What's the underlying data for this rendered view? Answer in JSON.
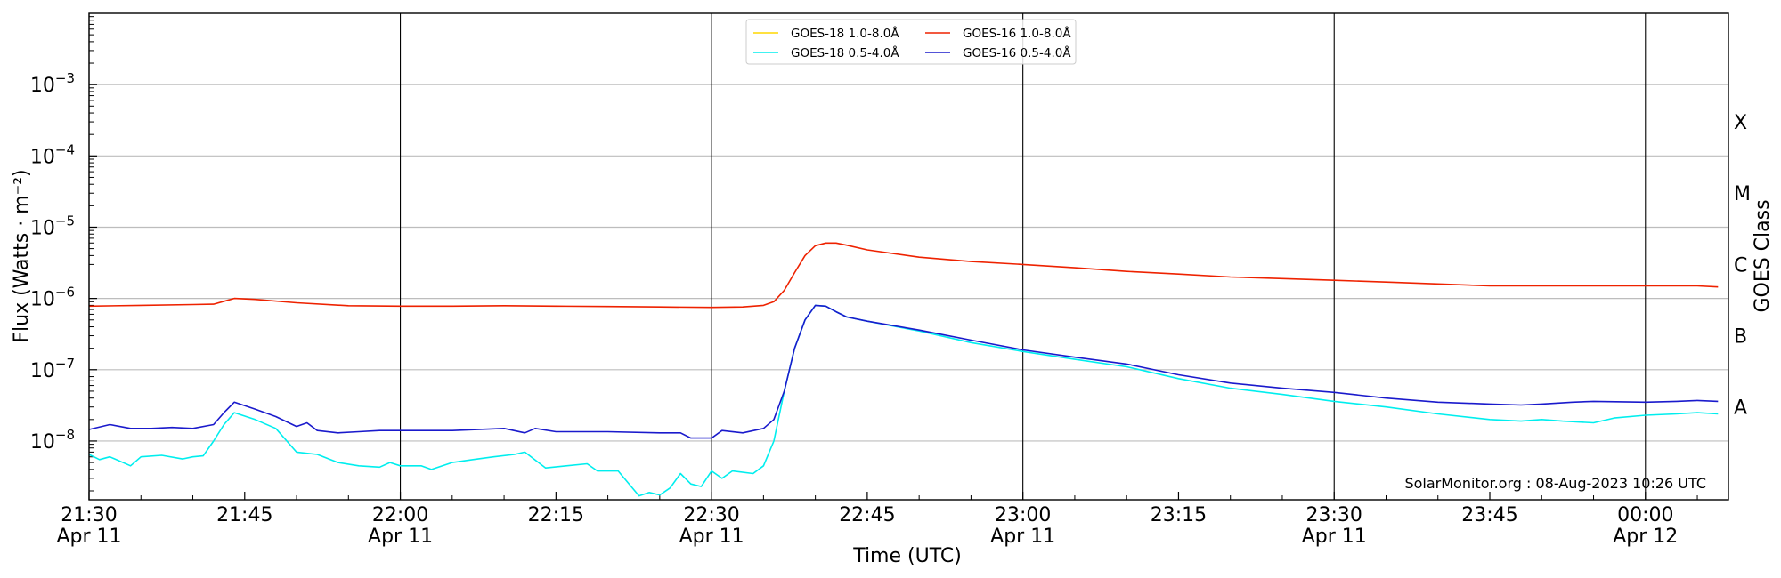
{
  "chart_data": {
    "type": "line",
    "title": "",
    "xlabel": "Time (UTC)",
    "ylabel": "Flux (Watts · m⁻²)",
    "y2label": "GOES Class",
    "yscale": "log",
    "ylim": [
      1.5e-09,
      0.01
    ],
    "xlim": [
      "21:30",
      "00:08"
    ],
    "x_ticks": [
      {
        "t": "21:30",
        "line1": "21:30",
        "line2": "Apr 11"
      },
      {
        "t": "21:45",
        "line1": "21:45",
        "line2": ""
      },
      {
        "t": "22:00",
        "line1": "22:00",
        "line2": "Apr 11"
      },
      {
        "t": "22:15",
        "line1": "22:15",
        "line2": ""
      },
      {
        "t": "22:30",
        "line1": "22:30",
        "line2": "Apr 11"
      },
      {
        "t": "22:45",
        "line1": "22:45",
        "line2": ""
      },
      {
        "t": "23:00",
        "line1": "23:00",
        "line2": "Apr 11"
      },
      {
        "t": "23:15",
        "line1": "23:15",
        "line2": ""
      },
      {
        "t": "23:30",
        "line1": "23:30",
        "line2": "Apr 11"
      },
      {
        "t": "23:45",
        "line1": "23:45",
        "line2": ""
      },
      {
        "t": "00:00",
        "line1": "00:00",
        "line2": "Apr 12"
      }
    ],
    "y_ticks": [
      {
        "value": 1e-08,
        "base": "10",
        "exp": "−8"
      },
      {
        "value": 1e-07,
        "base": "10",
        "exp": "−7"
      },
      {
        "value": 1e-06,
        "base": "10",
        "exp": "−6"
      },
      {
        "value": 1e-05,
        "base": "10",
        "exp": "−5"
      },
      {
        "value": 0.0001,
        "base": "10",
        "exp": "−4"
      },
      {
        "value": 0.001,
        "base": "10",
        "exp": "−3"
      }
    ],
    "goes_classes": [
      {
        "label": "A",
        "value": 3e-08
      },
      {
        "label": "B",
        "value": 3e-07
      },
      {
        "label": "C",
        "value": 3e-06
      },
      {
        "label": "M",
        "value": 3e-05
      },
      {
        "label": "X",
        "value": 0.0003
      }
    ],
    "grid": true,
    "legend_position": "top-center",
    "watermark": "SolarMonitor.org : 08-Aug-2023 10:26 UTC",
    "series": [
      {
        "name": "GOES-18 1.0-8.0Å",
        "color": "#ffd700",
        "points": []
      },
      {
        "name": "GOES-16 1.0-8.0Å",
        "color": "#ee2200",
        "points": [
          [
            "21:30",
            7.8e-07
          ],
          [
            "21:35",
            8e-07
          ],
          [
            "21:40",
            8.2e-07
          ],
          [
            "21:42",
            8.3e-07
          ],
          [
            "21:44",
            1e-06
          ],
          [
            "21:46",
            9.7e-07
          ],
          [
            "21:50",
            8.7e-07
          ],
          [
            "21:55",
            7.9e-07
          ],
          [
            "22:00",
            7.8e-07
          ],
          [
            "22:05",
            7.8e-07
          ],
          [
            "22:10",
            7.9e-07
          ],
          [
            "22:15",
            7.8e-07
          ],
          [
            "22:20",
            7.7e-07
          ],
          [
            "22:25",
            7.6e-07
          ],
          [
            "22:30",
            7.5e-07
          ],
          [
            "22:33",
            7.6e-07
          ],
          [
            "22:35",
            8e-07
          ],
          [
            "22:36",
            9e-07
          ],
          [
            "22:37",
            1.3e-06
          ],
          [
            "22:38",
            2.3e-06
          ],
          [
            "22:39",
            4e-06
          ],
          [
            "22:40",
            5.5e-06
          ],
          [
            "22:41",
            6e-06
          ],
          [
            "22:42",
            6e-06
          ],
          [
            "22:43",
            5.6e-06
          ],
          [
            "22:45",
            4.8e-06
          ],
          [
            "22:50",
            3.8e-06
          ],
          [
            "22:55",
            3.3e-06
          ],
          [
            "23:00",
            3e-06
          ],
          [
            "23:05",
            2.7e-06
          ],
          [
            "23:10",
            2.4e-06
          ],
          [
            "23:15",
            2.2e-06
          ],
          [
            "23:20",
            2e-06
          ],
          [
            "23:25",
            1.9e-06
          ],
          [
            "23:30",
            1.8e-06
          ],
          [
            "23:35",
            1.7e-06
          ],
          [
            "23:40",
            1.6e-06
          ],
          [
            "23:45",
            1.5e-06
          ],
          [
            "23:50",
            1.5e-06
          ],
          [
            "23:55",
            1.5e-06
          ],
          [
            "00:00",
            1.5e-06
          ],
          [
            "00:05",
            1.5e-06
          ],
          [
            "00:07",
            1.45e-06
          ]
        ]
      },
      {
        "name": "GOES-18 0.5-4.0Å",
        "color": "#00eeee",
        "points": [
          [
            "21:30",
            6.5e-09
          ],
          [
            "21:31",
            5.5e-09
          ],
          [
            "21:32",
            6e-09
          ],
          [
            "21:34",
            4.5e-09
          ],
          [
            "21:35",
            6e-09
          ],
          [
            "21:37",
            6.3e-09
          ],
          [
            "21:39",
            5.6e-09
          ],
          [
            "21:40",
            6e-09
          ],
          [
            "21:41",
            6.2e-09
          ],
          [
            "21:42",
            1e-08
          ],
          [
            "21:43",
            1.7e-08
          ],
          [
            "21:44",
            2.5e-08
          ],
          [
            "21:46",
            2e-08
          ],
          [
            "21:48",
            1.5e-08
          ],
          [
            "21:50",
            7e-09
          ],
          [
            "21:52",
            6.5e-09
          ],
          [
            "21:54",
            5e-09
          ],
          [
            "21:56",
            4.5e-09
          ],
          [
            "21:58",
            4.3e-09
          ],
          [
            "21:59",
            5e-09
          ],
          [
            "22:00",
            4.5e-09
          ],
          [
            "22:02",
            4.5e-09
          ],
          [
            "22:03",
            4e-09
          ],
          [
            "22:05",
            5e-09
          ],
          [
            "22:07",
            5.5e-09
          ],
          [
            "22:09",
            6e-09
          ],
          [
            "22:11",
            6.5e-09
          ],
          [
            "22:12",
            7e-09
          ],
          [
            "22:14",
            4.2e-09
          ],
          [
            "22:16",
            4.5e-09
          ],
          [
            "22:18",
            4.8e-09
          ],
          [
            "22:19",
            3.8e-09
          ],
          [
            "22:21",
            3.8e-09
          ],
          [
            "22:23",
            1.7e-09
          ],
          [
            "22:24",
            1.9e-09
          ],
          [
            "22:25",
            1.75e-09
          ],
          [
            "22:26",
            2.2e-09
          ],
          [
            "22:27",
            3.5e-09
          ],
          [
            "22:28",
            2.5e-09
          ],
          [
            "22:29",
            2.3e-09
          ],
          [
            "22:30",
            3.8e-09
          ],
          [
            "22:31",
            3e-09
          ],
          [
            "22:32",
            3.8e-09
          ],
          [
            "22:34",
            3.5e-09
          ],
          [
            "22:35",
            4.5e-09
          ],
          [
            "22:36",
            1e-08
          ],
          [
            "22:37",
            5e-08
          ],
          [
            "22:38",
            2e-07
          ],
          [
            "22:39",
            5e-07
          ],
          [
            "22:40",
            8e-07
          ],
          [
            "22:41",
            7.8e-07
          ],
          [
            "22:42",
            6.5e-07
          ],
          [
            "22:43",
            5.5e-07
          ],
          [
            "22:45",
            4.8e-07
          ],
          [
            "22:50",
            3.5e-07
          ],
          [
            "22:55",
            2.4e-07
          ],
          [
            "23:00",
            1.8e-07
          ],
          [
            "23:05",
            1.4e-07
          ],
          [
            "23:10",
            1.1e-07
          ],
          [
            "23:15",
            7.5e-08
          ],
          [
            "23:20",
            5.5e-08
          ],
          [
            "23:25",
            4.5e-08
          ],
          [
            "23:30",
            3.6e-08
          ],
          [
            "23:35",
            3e-08
          ],
          [
            "23:40",
            2.4e-08
          ],
          [
            "23:45",
            2e-08
          ],
          [
            "23:48",
            1.9e-08
          ],
          [
            "23:50",
            2e-08
          ],
          [
            "23:52",
            1.9e-08
          ],
          [
            "23:55",
            1.8e-08
          ],
          [
            "23:57",
            2.1e-08
          ],
          [
            "00:00",
            2.3e-08
          ],
          [
            "00:03",
            2.4e-08
          ],
          [
            "00:05",
            2.5e-08
          ],
          [
            "00:07",
            2.4e-08
          ]
        ]
      },
      {
        "name": "GOES-16 0.5-4.0Å",
        "color": "#1a1acc",
        "points": [
          [
            "21:30",
            1.45e-08
          ],
          [
            "21:32",
            1.7e-08
          ],
          [
            "21:34",
            1.5e-08
          ],
          [
            "21:36",
            1.5e-08
          ],
          [
            "21:38",
            1.55e-08
          ],
          [
            "21:40",
            1.5e-08
          ],
          [
            "21:42",
            1.7e-08
          ],
          [
            "21:43",
            2.5e-08
          ],
          [
            "21:44",
            3.5e-08
          ],
          [
            "21:46",
            2.8e-08
          ],
          [
            "21:48",
            2.2e-08
          ],
          [
            "21:50",
            1.6e-08
          ],
          [
            "21:51",
            1.8e-08
          ],
          [
            "21:52",
            1.4e-08
          ],
          [
            "21:54",
            1.3e-08
          ],
          [
            "21:56",
            1.35e-08
          ],
          [
            "21:58",
            1.4e-08
          ],
          [
            "22:00",
            1.4e-08
          ],
          [
            "22:05",
            1.4e-08
          ],
          [
            "22:10",
            1.5e-08
          ],
          [
            "22:12",
            1.3e-08
          ],
          [
            "22:13",
            1.5e-08
          ],
          [
            "22:15",
            1.35e-08
          ],
          [
            "22:20",
            1.35e-08
          ],
          [
            "22:25",
            1.3e-08
          ],
          [
            "22:27",
            1.3e-08
          ],
          [
            "22:28",
            1.1e-08
          ],
          [
            "22:30",
            1.1e-08
          ],
          [
            "22:31",
            1.4e-08
          ],
          [
            "22:33",
            1.3e-08
          ],
          [
            "22:35",
            1.5e-08
          ],
          [
            "22:36",
            2e-08
          ],
          [
            "22:37",
            5e-08
          ],
          [
            "22:38",
            2e-07
          ],
          [
            "22:39",
            5e-07
          ],
          [
            "22:40",
            8e-07
          ],
          [
            "22:41",
            7.8e-07
          ],
          [
            "22:42",
            6.5e-07
          ],
          [
            "22:43",
            5.5e-07
          ],
          [
            "22:45",
            4.8e-07
          ],
          [
            "22:50",
            3.6e-07
          ],
          [
            "22:55",
            2.6e-07
          ],
          [
            "23:00",
            1.9e-07
          ],
          [
            "23:05",
            1.5e-07
          ],
          [
            "23:10",
            1.2e-07
          ],
          [
            "23:15",
            8.5e-08
          ],
          [
            "23:20",
            6.5e-08
          ],
          [
            "23:25",
            5.5e-08
          ],
          [
            "23:30",
            4.8e-08
          ],
          [
            "23:35",
            4e-08
          ],
          [
            "23:40",
            3.5e-08
          ],
          [
            "23:45",
            3.3e-08
          ],
          [
            "23:48",
            3.2e-08
          ],
          [
            "23:50",
            3.3e-08
          ],
          [
            "23:53",
            3.5e-08
          ],
          [
            "23:55",
            3.6e-08
          ],
          [
            "00:00",
            3.5e-08
          ],
          [
            "00:03",
            3.6e-08
          ],
          [
            "00:05",
            3.7e-08
          ],
          [
            "00:07",
            3.6e-08
          ]
        ]
      }
    ]
  }
}
